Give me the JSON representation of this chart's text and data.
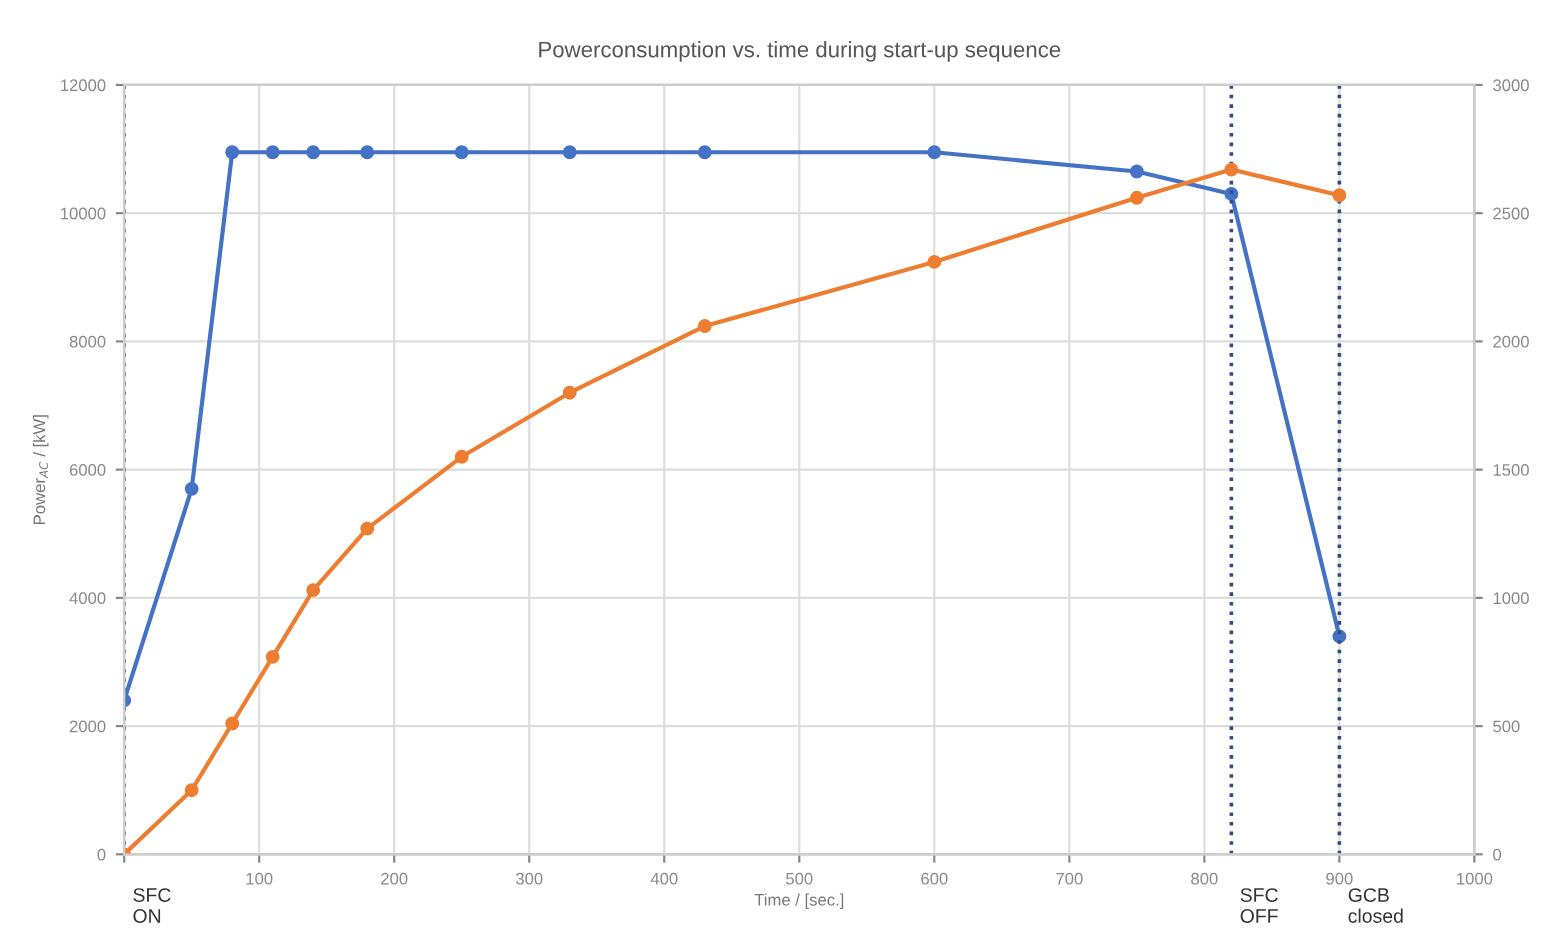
{
  "chart_data": {
    "type": "line",
    "title": "Powerconsumption vs. time during start-up sequence",
    "xlabel": "Time / [sec.]",
    "ylabel": "Power$_{AC}$ / [kW]",
    "x": [
      0,
      50,
      80,
      110,
      140,
      180,
      250,
      330,
      430,
      600,
      750,
      820,
      900
    ],
    "series": [
      {
        "color": "#4472c4",
        "values": [
          2400,
          5700,
          10950,
          10950,
          10950,
          10950,
          10950,
          10950,
          10950,
          10950,
          10650,
          10300,
          3400
        ]
      },
      {
        "color": "#ed7d31",
        "axis": "y2",
        "values": [
          0,
          250,
          510,
          770,
          1030,
          1270,
          1550,
          1800,
          2060,
          2310,
          2560,
          2670,
          2570
        ]
      }
    ],
    "xlim": [
      0,
      1000
    ],
    "xticks": [
      {
        "value": 0,
        "label": null
      },
      100,
      200,
      300,
      400,
      500,
      600,
      700,
      800,
      900,
      1000
    ],
    "ylim": [
      0,
      12000
    ],
    "yticks": [
      0,
      2000,
      4000,
      6000,
      8000,
      10000,
      12000
    ],
    "y2lim": [
      0,
      3000
    ],
    "y2ticks": [
      0,
      500,
      1000,
      1500,
      2000,
      2500,
      3000
    ],
    "ref_lines": [
      {
        "axis": "x",
        "value": 0,
        "label": "SFC\nON",
        "color": "#2f4b8a",
        "line_style": "dotted"
      },
      {
        "axis": "x",
        "value": 820,
        "label": "SFC\nOFF",
        "color": "#2f4b8a",
        "line_style": "dotted"
      },
      {
        "axis": "x",
        "value": 900,
        "label": "GCB\nclosed",
        "color": "#2f4b8a",
        "line_style": "dotted"
      }
    ],
    "grid": true,
    "marker": "circle",
    "line_style": "solid"
  }
}
